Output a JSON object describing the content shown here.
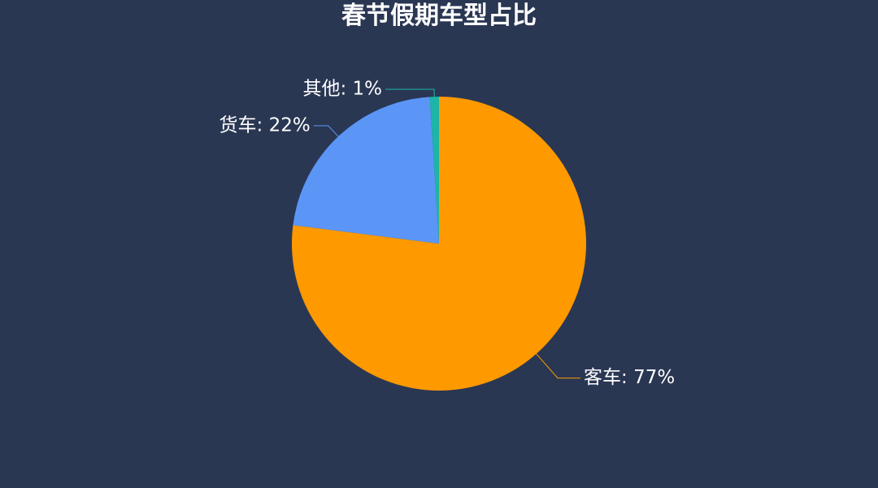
{
  "chart_data": {
    "type": "pie",
    "title": "春节假期车型占比",
    "slices": [
      {
        "label": "客车: 77%",
        "name": "客车",
        "value": 77,
        "color": "#ff9900"
      },
      {
        "label": "货车: 22%",
        "name": "货车",
        "value": 22,
        "color": "#5b96f7"
      },
      {
        "label": "其他: 1%",
        "name": "其他",
        "value": 1,
        "color": "#1cb5a8"
      }
    ],
    "start": "top",
    "direction": "clockwise",
    "label_placement": "outside with leader lines",
    "legend": "none",
    "background": "#2a3753",
    "label_color": "#ffffff"
  }
}
